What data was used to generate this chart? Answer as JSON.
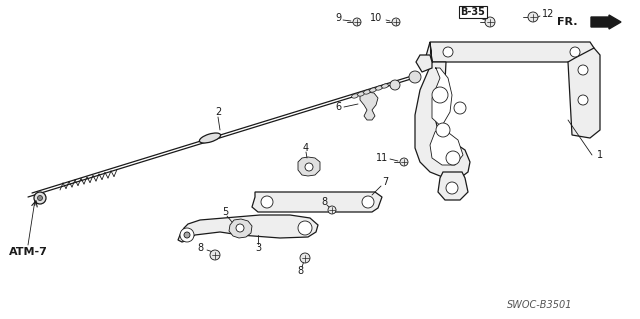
{
  "bg_color": "#ffffff",
  "line_color": "#1a1a1a",
  "footnote": "SWOC-B3501",
  "figsize": [
    6.4,
    3.19
  ],
  "dpi": 100,
  "fr_label": "FR.",
  "atm_label": "ATM-7",
  "b35_label": "B-35"
}
